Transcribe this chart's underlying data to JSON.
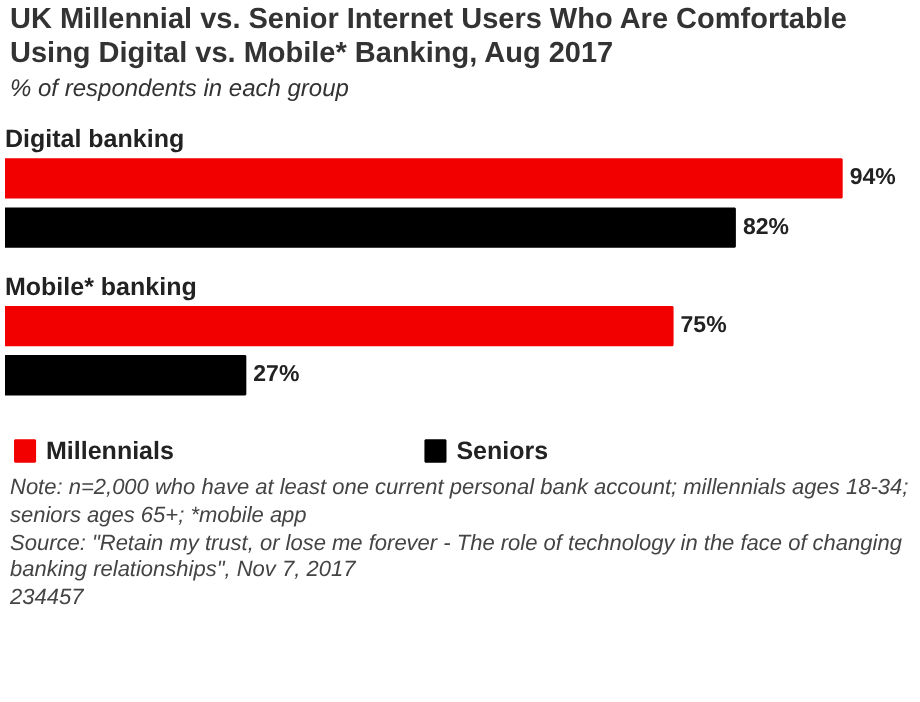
{
  "chart_data": {
    "type": "bar",
    "orientation": "horizontal",
    "title": "UK Millennial vs. Senior Internet Users Who Are Comfortable Using Digital vs. Mobile* Banking, Aug 2017",
    "subtitle": "% of respondents in each group",
    "categories": [
      "Digital banking",
      "Mobile* banking"
    ],
    "series": [
      {
        "name": "Millennials",
        "color": "#f20000",
        "values": [
          94,
          75
        ],
        "value_labels": [
          "94%",
          "75%"
        ]
      },
      {
        "name": "Seniors",
        "color": "#000000",
        "values": [
          82,
          27
        ],
        "value_labels": [
          "82%",
          "27%"
        ]
      }
    ],
    "legend": "bottom",
    "grid": false,
    "annotations": [
      "Note: n=2,000 who have at least one current personal bank account; millennials ages 18-34; seniors ages 65+; *mobile app",
      "Source: \"Retain my trust, or lose me forever - The role of technology in the face of changing banking relationships\", Nov 7, 2017",
      "234457"
    ]
  }
}
